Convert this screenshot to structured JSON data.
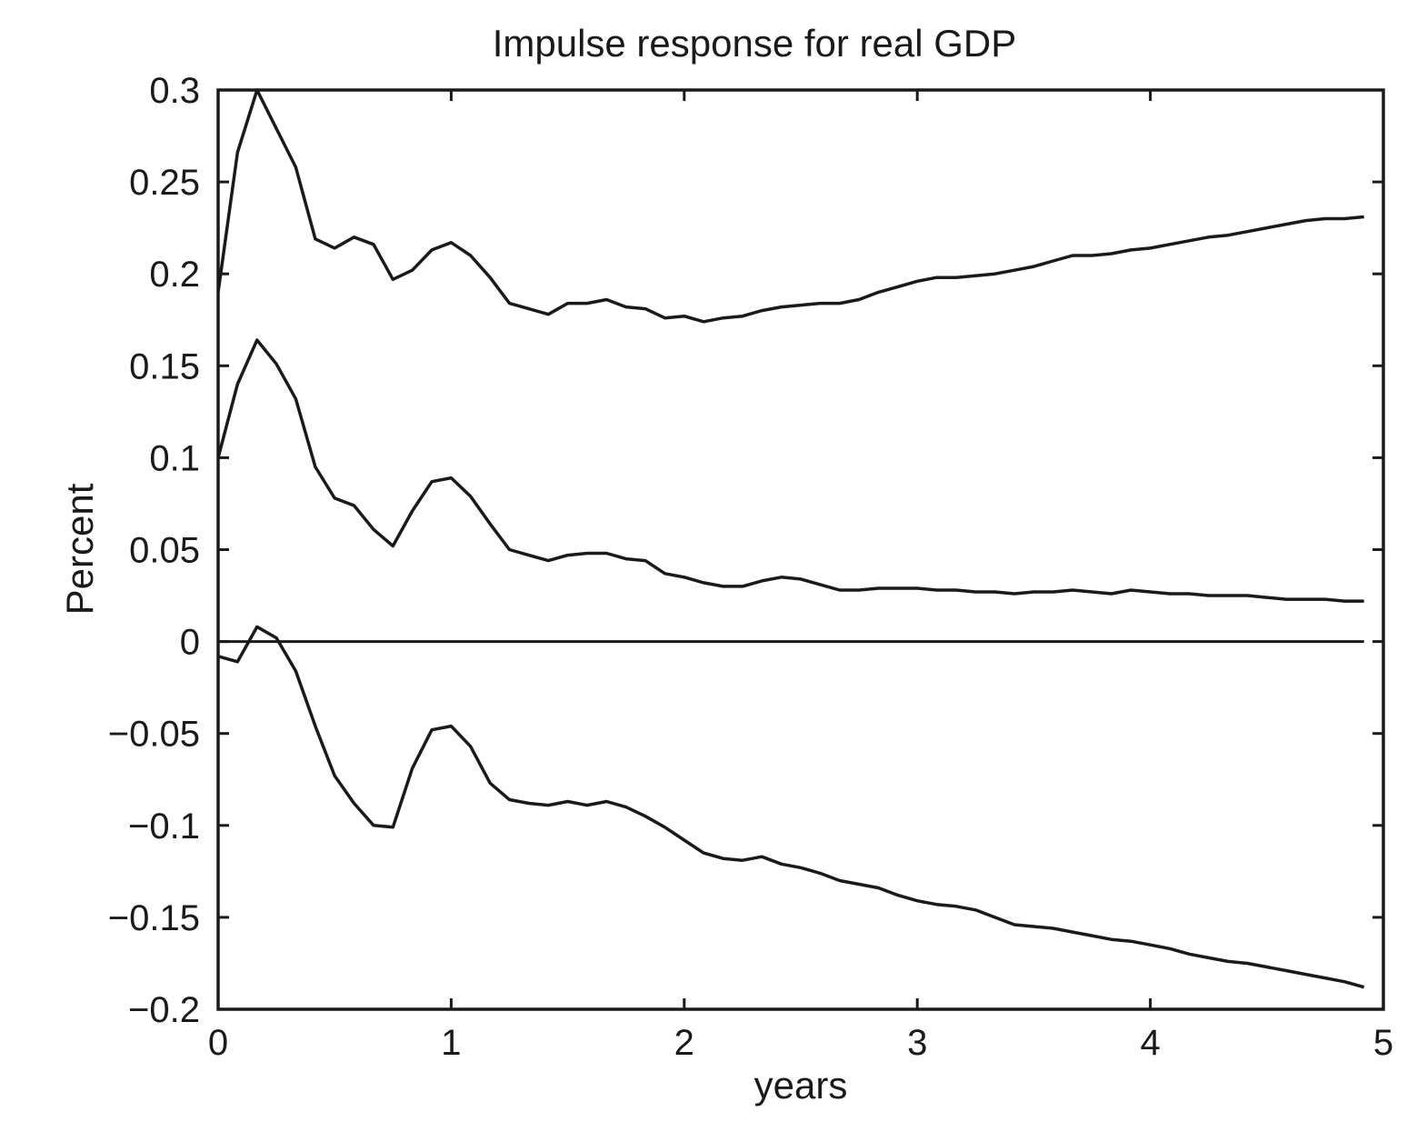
{
  "chart_data": {
    "type": "line",
    "title": "Impulse response for real GDP",
    "xlabel": "years",
    "ylabel": "Percent",
    "xlim": [
      0,
      5
    ],
    "ylim": [
      -0.2,
      0.3
    ],
    "xticks": [
      0,
      1,
      2,
      3,
      4,
      5
    ],
    "xtick_labels": [
      "0",
      "1",
      "2",
      "3",
      "4",
      "5"
    ],
    "yticks": [
      -0.2,
      -0.15,
      -0.1,
      -0.05,
      0,
      0.05,
      0.1,
      0.15,
      0.2,
      0.25,
      0.3
    ],
    "ytick_labels": [
      "−0.2",
      "−0.15",
      "−0.1",
      "−0.05",
      "0",
      "0.05",
      "0.1",
      "0.15",
      "0.2",
      "0.25",
      "0.3"
    ],
    "grid": false,
    "reference_line_y": 0,
    "line_color": "#1a1a1a",
    "x": [
      0.0,
      0.083,
      0.167,
      0.25,
      0.333,
      0.417,
      0.5,
      0.583,
      0.667,
      0.75,
      0.833,
      0.917,
      1.0,
      1.083,
      1.167,
      1.25,
      1.333,
      1.417,
      1.5,
      1.583,
      1.667,
      1.75,
      1.833,
      1.917,
      2.0,
      2.083,
      2.167,
      2.25,
      2.333,
      2.417,
      2.5,
      2.583,
      2.667,
      2.75,
      2.833,
      2.917,
      3.0,
      3.083,
      3.167,
      3.25,
      3.333,
      3.417,
      3.5,
      3.583,
      3.667,
      3.75,
      3.833,
      3.917,
      4.0,
      4.083,
      4.167,
      4.25,
      4.333,
      4.417,
      4.5,
      4.583,
      4.667,
      4.75,
      4.833,
      4.917
    ],
    "series": [
      {
        "values": [
          0.19,
          0.266,
          0.3,
          0.279,
          0.258,
          0.219,
          0.214,
          0.22,
          0.216,
          0.197,
          0.202,
          0.213,
          0.217,
          0.21,
          0.198,
          0.184,
          0.181,
          0.178,
          0.184,
          0.184,
          0.186,
          0.182,
          0.181,
          0.176,
          0.177,
          0.174,
          0.176,
          0.177,
          0.18,
          0.182,
          0.183,
          0.184,
          0.184,
          0.186,
          0.19,
          0.193,
          0.196,
          0.198,
          0.198,
          0.199,
          0.2,
          0.202,
          0.204,
          0.207,
          0.21,
          0.21,
          0.211,
          0.213,
          0.214,
          0.216,
          0.218,
          0.22,
          0.221,
          0.223,
          0.225,
          0.227,
          0.229,
          0.23,
          0.23,
          0.231
        ]
      },
      {
        "values": [
          0.1,
          0.14,
          0.164,
          0.151,
          0.132,
          0.095,
          0.078,
          0.074,
          0.061,
          0.052,
          0.071,
          0.087,
          0.089,
          0.079,
          0.064,
          0.05,
          0.047,
          0.044,
          0.047,
          0.048,
          0.048,
          0.045,
          0.044,
          0.037,
          0.035,
          0.032,
          0.03,
          0.03,
          0.033,
          0.035,
          0.034,
          0.031,
          0.028,
          0.028,
          0.029,
          0.029,
          0.029,
          0.028,
          0.028,
          0.027,
          0.027,
          0.026,
          0.027,
          0.027,
          0.028,
          0.027,
          0.026,
          0.028,
          0.027,
          0.026,
          0.026,
          0.025,
          0.025,
          0.025,
          0.024,
          0.023,
          0.023,
          0.023,
          0.022,
          0.022
        ]
      },
      {
        "values": [
          -0.008,
          -0.011,
          0.008,
          0.002,
          -0.016,
          -0.046,
          -0.073,
          -0.088,
          -0.1,
          -0.101,
          -0.069,
          -0.048,
          -0.046,
          -0.057,
          -0.077,
          -0.086,
          -0.088,
          -0.089,
          -0.087,
          -0.089,
          -0.087,
          -0.09,
          -0.095,
          -0.101,
          -0.108,
          -0.115,
          -0.118,
          -0.119,
          -0.117,
          -0.121,
          -0.123,
          -0.126,
          -0.13,
          -0.132,
          -0.134,
          -0.138,
          -0.141,
          -0.143,
          -0.144,
          -0.146,
          -0.15,
          -0.154,
          -0.155,
          -0.156,
          -0.158,
          -0.16,
          -0.162,
          -0.163,
          -0.165,
          -0.167,
          -0.17,
          -0.172,
          -0.174,
          -0.175,
          -0.177,
          -0.179,
          -0.181,
          -0.183,
          -0.185,
          -0.188
        ]
      }
    ]
  }
}
